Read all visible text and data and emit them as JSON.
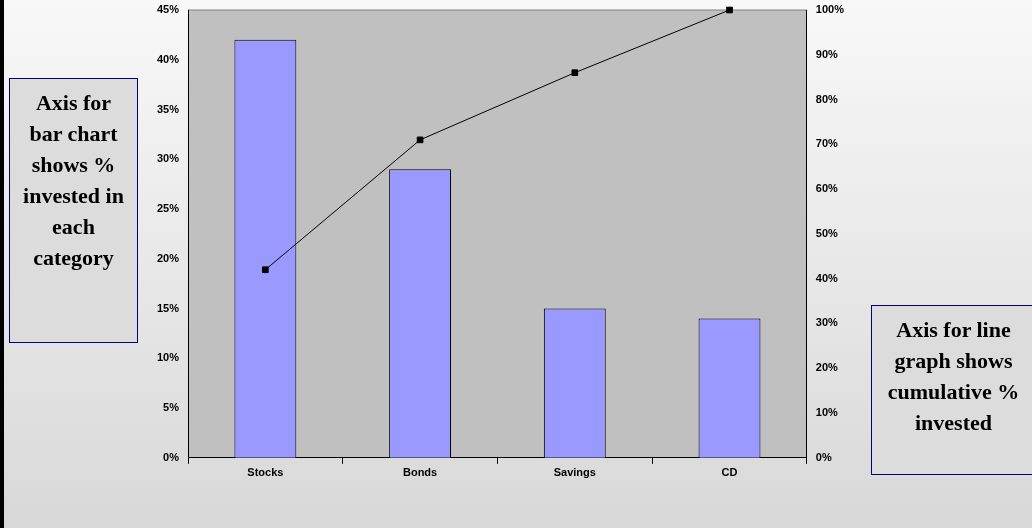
{
  "chart_data": {
    "type": "bar",
    "categories": [
      "Stocks",
      "Bonds",
      "Savings",
      "CD"
    ],
    "series": [
      {
        "color": "#9999ff",
        "values": [
          42,
          29,
          15,
          14
        ]
      },
      {
        "type": "line",
        "axis": "y2",
        "color": "#000000",
        "values": [
          42,
          71,
          86,
          100
        ]
      }
    ],
    "ylim": [
      0,
      45
    ],
    "yticks": [
      {
        "value": 0,
        "label": "0%"
      },
      {
        "value": 5,
        "label": "5%"
      },
      {
        "value": 10,
        "label": "10%"
      },
      {
        "value": 15,
        "label": "15%"
      },
      {
        "value": 20,
        "label": "20%"
      },
      {
        "value": 25,
        "label": "25%"
      },
      {
        "value": 30,
        "label": "30%"
      },
      {
        "value": 35,
        "label": "35%"
      },
      {
        "value": 40,
        "label": "40%"
      },
      {
        "value": 45,
        "label": "45%"
      }
    ],
    "y2lim": [
      0,
      100
    ],
    "y2ticks": [
      {
        "value": 0,
        "label": "0%"
      },
      {
        "value": 10,
        "label": "10%"
      },
      {
        "value": 20,
        "label": "20%"
      },
      {
        "value": 30,
        "label": "30%"
      },
      {
        "value": 40,
        "label": "40%"
      },
      {
        "value": 50,
        "label": "50%"
      },
      {
        "value": 60,
        "label": "60%"
      },
      {
        "value": 70,
        "label": "70%"
      },
      {
        "value": 80,
        "label": "80%"
      },
      {
        "value": 90,
        "label": "90%"
      },
      {
        "value": 100,
        "label": "100%"
      }
    ],
    "annotations": [
      "Axis for bar chart shows % invested in each category",
      "Axis for line graph shows cumulative % invested"
    ],
    "grid": false,
    "legend": false,
    "marker": "square",
    "line_style": "solid"
  }
}
